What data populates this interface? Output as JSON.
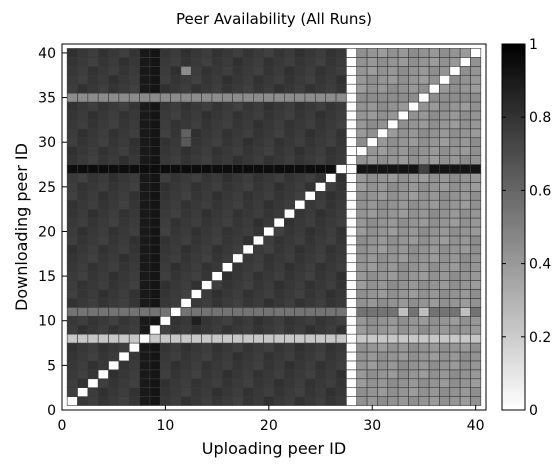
{
  "chart_data": {
    "type": "heatmap",
    "title": "Peer Availability (All Runs)",
    "xlabel": "Uploading peer ID",
    "ylabel": "Downloading peer ID",
    "xlim": [
      0,
      41
    ],
    "ylim": [
      0,
      41
    ],
    "x_ticks": [
      0,
      10,
      20,
      30,
      40
    ],
    "y_ticks": [
      0,
      5,
      10,
      15,
      20,
      25,
      30,
      35,
      40
    ],
    "peer_count": 40,
    "colormap": "gray (1 = black, 0 = white)",
    "colorbar": {
      "min": 0,
      "max": 1,
      "ticks": [
        0,
        0.2,
        0.4,
        0.6,
        0.8,
        1
      ]
    },
    "diagonal_value": 0,
    "base_values": {
      "uploaders_1_to_27": 0.78,
      "uploaders_28_to_40": 0.42,
      "uploader_28": 0
    },
    "column_overrides": [
      {
        "uploader": 8,
        "value": 0.9
      },
      {
        "uploader": 9,
        "value": 0.92
      }
    ],
    "row_overrides": [
      {
        "downloader": 27,
        "value": 0.95
      },
      {
        "downloader": 8,
        "value": 0.22
      },
      {
        "downloader": 35,
        "value": 0.45
      },
      {
        "downloader": 11,
        "value": 0.55
      }
    ],
    "cell_overrides": [
      {
        "uploader": 12,
        "downloader": 38,
        "value": 0.45
      },
      {
        "uploader": 12,
        "downloader": 30,
        "value": 0.65
      },
      {
        "uploader": 12,
        "downloader": 31,
        "value": 0.62
      },
      {
        "uploader": 13,
        "downloader": 10,
        "value": 0.88
      },
      {
        "uploader": 35,
        "downloader": 35,
        "value": 0.55
      },
      {
        "uploader": 33,
        "downloader": 11,
        "value": 0.25
      },
      {
        "uploader": 35,
        "downloader": 11,
        "value": 0.25
      },
      {
        "uploader": 39,
        "downloader": 11,
        "value": 0.25
      },
      {
        "uploader": 35,
        "downloader": 27,
        "value": 0.75
      }
    ]
  }
}
